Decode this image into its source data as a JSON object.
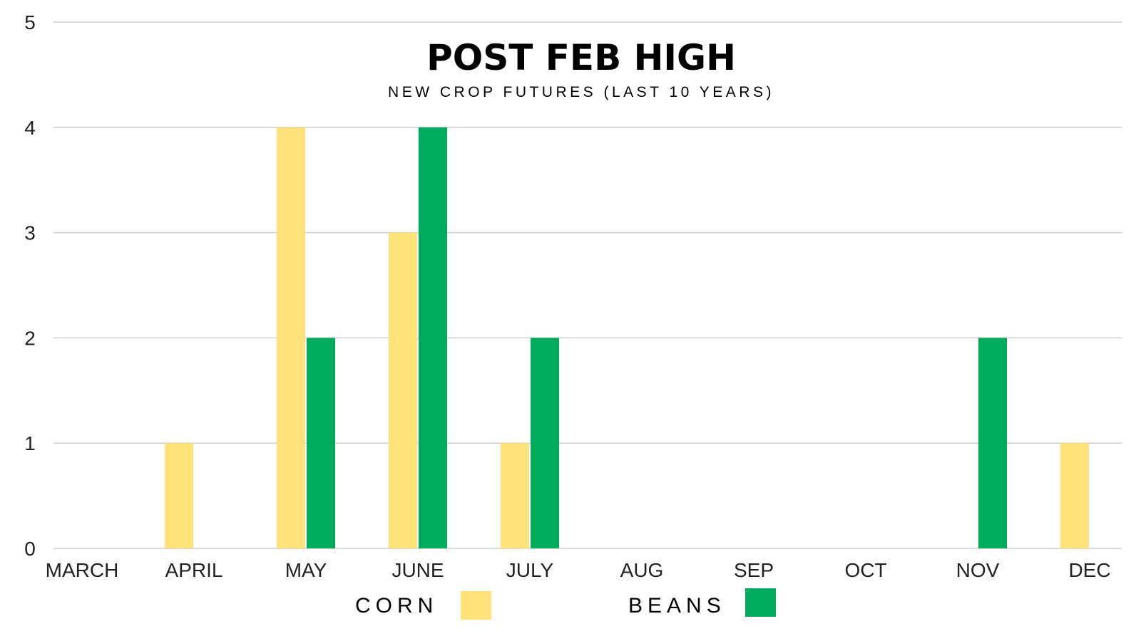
{
  "chart_data": {
    "type": "bar",
    "title": "POST FEB HIGH",
    "subtitle": "NEW CROP FUTURES (LAST 10 YEARS)",
    "categories": [
      "MARCH",
      "APRIL",
      "MAY",
      "JUNE",
      "JULY",
      "AUG",
      "SEP",
      "OCT",
      "NOV",
      "DEC"
    ],
    "series": [
      {
        "name": "CORN",
        "color": "#FFE27A",
        "values": [
          0,
          1,
          4,
          3,
          1,
          0,
          0,
          0,
          0,
          1
        ]
      },
      {
        "name": "BEANS",
        "color": "#00AB5E",
        "values": [
          0,
          0,
          2,
          4,
          2,
          0,
          0,
          0,
          2,
          0
        ]
      }
    ],
    "ylim": [
      0,
      5
    ],
    "yticks": [
      "0",
      "1",
      "2",
      "3",
      "4",
      "5"
    ],
    "grid": true,
    "legend": "bottom"
  }
}
